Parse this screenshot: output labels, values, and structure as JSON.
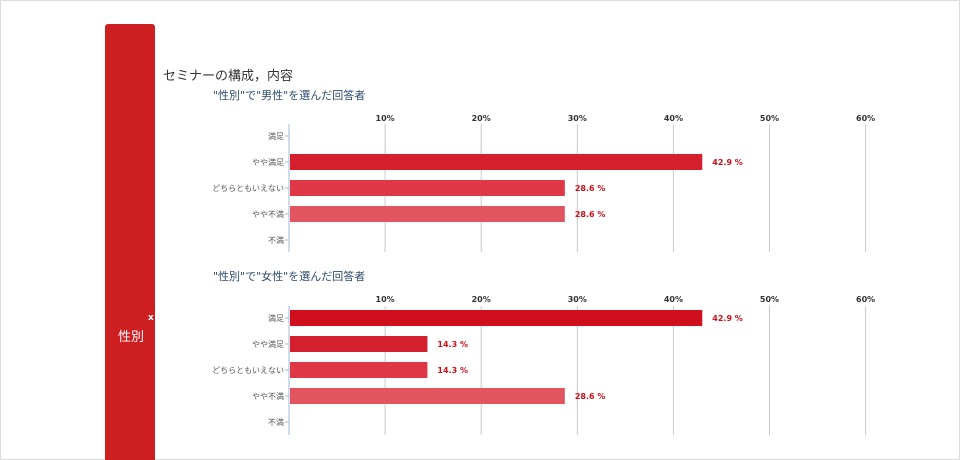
{
  "sidebar": {
    "label": "性別",
    "close": "x"
  },
  "section": {
    "title": "セミナーの構成，内容"
  },
  "colors": {
    "tab": "#cd1f22",
    "bar_strong": "#d00f1e",
    "bar_mid": "#d92433",
    "bar_light": "#e05560",
    "label": "#cc0f1a"
  },
  "chart_data": [
    {
      "type": "bar",
      "orientation": "horizontal",
      "title": "\"性別\"で\"男性\"を選んだ回答者",
      "categories": [
        "満足",
        "やや満足",
        "どちらともいえない",
        "やや不満",
        "不満"
      ],
      "values": [
        0,
        42.9,
        28.6,
        28.6,
        0
      ],
      "data_labels": [
        "",
        "42.9 %",
        "28.6 %",
        "28.6 %",
        ""
      ],
      "bar_colors": [
        "#d00f1e",
        "#d41f2c",
        "#de3847",
        "#e2555f",
        "#e2555f"
      ],
      "xticks": [
        "10%",
        "20%",
        "30%",
        "40%",
        "50%",
        "60%"
      ],
      "xlim": [
        0,
        60
      ],
      "grid": true
    },
    {
      "type": "bar",
      "orientation": "horizontal",
      "title": "\"性別\"で\"女性\"を選んだ回答者",
      "categories": [
        "満足",
        "やや満足",
        "どちらともいえない",
        "やや不満",
        "不満"
      ],
      "values": [
        42.9,
        14.3,
        14.3,
        28.6,
        0
      ],
      "data_labels": [
        "42.9 %",
        "14.3 %",
        "14.3 %",
        "28.6 %",
        ""
      ],
      "bar_colors": [
        "#d00f1e",
        "#d41f2c",
        "#de3847",
        "#e2555f",
        "#e2555f"
      ],
      "xticks": [
        "10%",
        "20%",
        "30%",
        "40%",
        "50%",
        "60%"
      ],
      "xlim": [
        0,
        60
      ],
      "grid": true
    }
  ]
}
